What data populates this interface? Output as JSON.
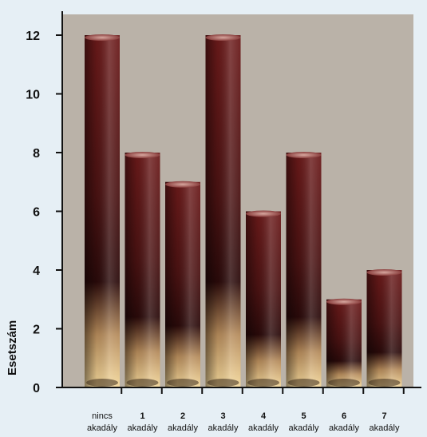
{
  "chart_data": {
    "type": "bar",
    "ylabel": "Esetszám",
    "ylim": [
      0,
      12
    ],
    "yticks": [
      0,
      2,
      4,
      6,
      8,
      10,
      12
    ],
    "grid": false,
    "categories": [
      [
        "nincs",
        "akadály"
      ],
      [
        "1",
        "akadály"
      ],
      [
        "2",
        "akadály"
      ],
      [
        "3",
        "akadály"
      ],
      [
        "4",
        "akadály"
      ],
      [
        "5",
        "akadály"
      ],
      [
        "6",
        "akadály"
      ],
      [
        "7",
        "akadály"
      ]
    ],
    "values": [
      12,
      8,
      7,
      12,
      6,
      8,
      3,
      4
    ],
    "colors": {
      "page_background": "#e6eff5",
      "plot_background": "#bab2a8",
      "bar_top": "#6b1a1a",
      "bar_dark": "#2a0a0a",
      "bar_bottom": "#f3d79a",
      "axis": "#111111"
    }
  }
}
